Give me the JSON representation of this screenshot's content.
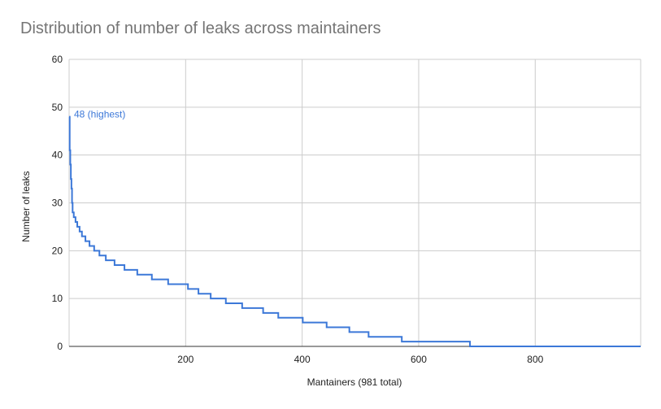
{
  "chart_data": {
    "type": "line",
    "title": "Distribution of number of leaks across maintainers",
    "xlabel": "Mantainers (981 total)",
    "ylabel": "Number of leaks",
    "xlim": [
      0,
      981
    ],
    "ylim": [
      0,
      60
    ],
    "x_ticks": [
      200,
      400,
      600,
      800
    ],
    "y_ticks": [
      0,
      10,
      20,
      30,
      40,
      50,
      60
    ],
    "grid": true,
    "line_color": "#3c78d8",
    "annotation": {
      "text": "48 (highest)",
      "x": 0,
      "y": 48
    },
    "series": [
      {
        "x": [
          0,
          1,
          2,
          3,
          4,
          5,
          6,
          8,
          11,
          14,
          18,
          22,
          28,
          35,
          43,
          52,
          63,
          78,
          95,
          117,
          142,
          170,
          204,
          222,
          243,
          269,
          297,
          333,
          359,
          401,
          442,
          481,
          514,
          571,
          620,
          688,
          796,
          797,
          981
        ],
        "y": [
          48,
          41,
          38,
          35,
          33,
          30,
          28,
          27,
          26,
          25,
          24,
          23,
          22,
          21,
          20,
          19,
          18,
          17,
          16,
          15,
          14,
          13,
          12,
          11,
          10,
          9,
          8,
          7,
          6,
          5,
          4,
          3,
          2,
          1,
          1,
          0,
          0,
          0,
          0
        ]
      }
    ]
  }
}
